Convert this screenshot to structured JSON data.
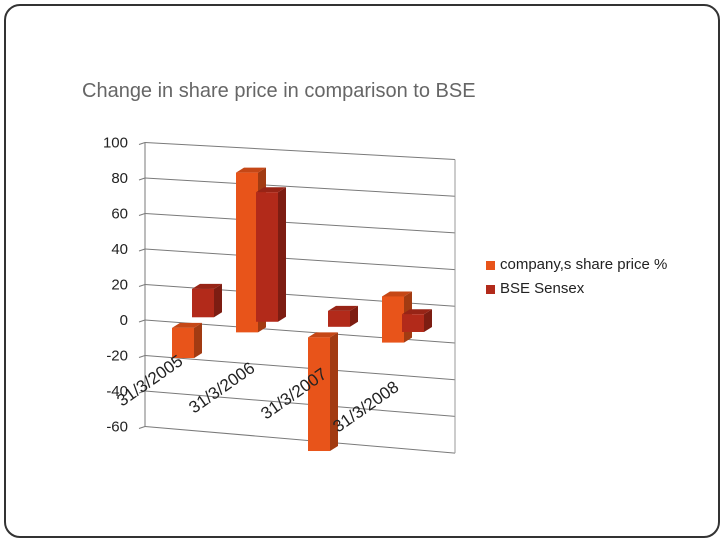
{
  "chart_data": {
    "type": "bar",
    "title": "Change in share price in comparison to BSE",
    "categories": [
      "31/3/2005",
      "31/3/2006",
      "31/3/2007",
      "31/3/2008"
    ],
    "series": [
      {
        "name": "company,s share price %",
        "values": [
          -17,
          90,
          -64,
          26
        ],
        "color": "#E8541A"
      },
      {
        "name": "BSE Sensex",
        "values": [
          16,
          73,
          9,
          10
        ],
        "color": "#B22A1A"
      }
    ],
    "ylim": [
      -60,
      100
    ],
    "yticks": [
      "100",
      "80",
      "60",
      "40",
      "20",
      "0",
      "-20",
      "-40",
      "-60"
    ],
    "grid": true,
    "legend_position": "right",
    "xlabel": "",
    "ylabel": ""
  }
}
